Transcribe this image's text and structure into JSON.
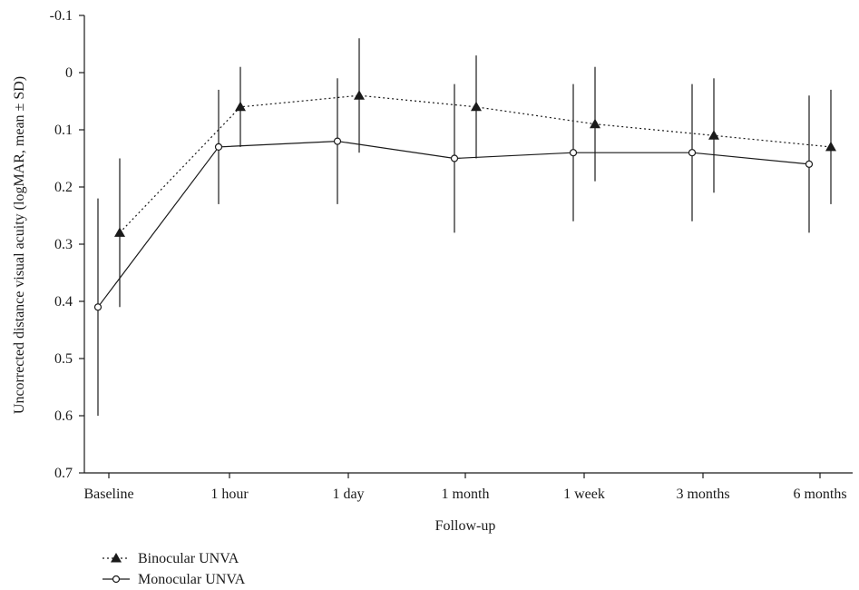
{
  "chart_data": {
    "type": "line",
    "categories": [
      "Baseline",
      "1 hour",
      "1 day",
      "1 month",
      "1 week",
      "3 months",
      "6 months"
    ],
    "xlabel": "Follow-up",
    "ylabel": "Uncorrected distance visual acuity (logMAR, mean ± SD)",
    "ylim": [
      0.7,
      -0.1
    ],
    "y_inverted": true,
    "y_ticks": [
      "-0.1",
      "0",
      "0.1",
      "0.2",
      "0.3",
      "0.4",
      "0.5",
      "0.6",
      "0.7"
    ],
    "grid": false,
    "legend_position": "bottom-left",
    "series": [
      {
        "name": "Binocular UNVA",
        "marker": "filled-triangle",
        "line_style": "dotted",
        "color": "#1a1a1a",
        "values": [
          0.28,
          0.06,
          0.04,
          0.06,
          0.09,
          0.11,
          0.13
        ],
        "sd": [
          0.13,
          0.07,
          0.1,
          0.09,
          0.1,
          0.1,
          0.1
        ]
      },
      {
        "name": "Monocular UNVA",
        "marker": "open-circle",
        "line_style": "solid",
        "color": "#1a1a1a",
        "values": [
          0.41,
          0.13,
          0.12,
          0.15,
          0.14,
          0.14,
          0.16
        ],
        "sd": [
          0.19,
          0.1,
          0.11,
          0.13,
          0.12,
          0.12,
          0.12
        ]
      }
    ]
  }
}
